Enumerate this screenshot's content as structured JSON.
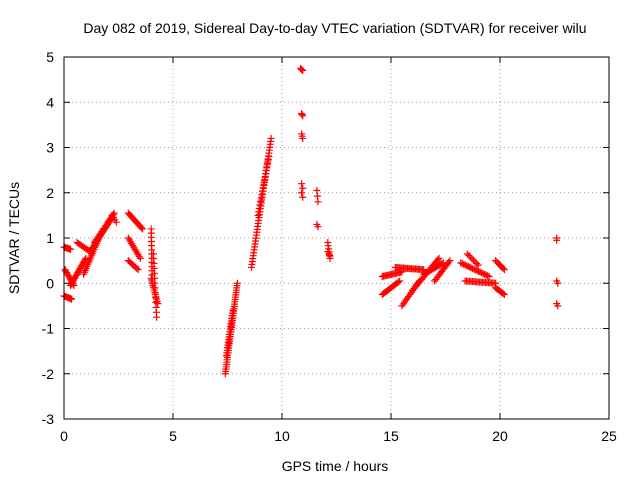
{
  "chart_data": {
    "type": "scatter",
    "title": "Day 082 of 2019, Sidereal Day-to-day VTEC variation (SDTVAR) for receiver wilu",
    "xlabel": "GPS time / hours",
    "ylabel": "SDTVAR / TECUs",
    "xlim": [
      0,
      25
    ],
    "ylim": [
      -3,
      5
    ],
    "xticks": [
      0,
      5,
      10,
      15,
      20,
      25
    ],
    "yticks": [
      -3,
      -2,
      -1,
      0,
      1,
      2,
      3,
      4,
      5
    ],
    "grid": true,
    "marker": "plus",
    "color": "#ff0000",
    "segments": [
      {
        "x0": 0.0,
        "x1": 0.3,
        "y0": 0.8,
        "y1": 0.75,
        "n": 8
      },
      {
        "x0": 0.05,
        "x1": 0.45,
        "y0": 0.3,
        "y1": -0.05,
        "n": 12
      },
      {
        "x0": 0.0,
        "x1": 0.35,
        "y0": -0.28,
        "y1": -0.35,
        "n": 8
      },
      {
        "x0": 0.3,
        "x1": 1.0,
        "y0": -0.05,
        "y1": 0.55,
        "n": 20
      },
      {
        "x0": 0.6,
        "x1": 1.2,
        "y0": 0.9,
        "y1": 0.7,
        "n": 10
      },
      {
        "x0": 0.9,
        "x1": 1.6,
        "y0": 0.2,
        "y1": 1.0,
        "n": 20
      },
      {
        "x0": 1.2,
        "x1": 2.2,
        "y0": 0.7,
        "y1": 1.45,
        "n": 26
      },
      {
        "x0": 1.4,
        "x1": 2.3,
        "y0": 0.9,
        "y1": 1.55,
        "n": 20
      },
      {
        "x0": 2.2,
        "x1": 2.4,
        "y0": 1.5,
        "y1": 1.35,
        "n": 4
      },
      {
        "x0": 2.95,
        "x1": 3.6,
        "y0": 1.55,
        "y1": 1.2,
        "n": 14
      },
      {
        "x0": 2.95,
        "x1": 3.5,
        "y0": 1.0,
        "y1": 0.55,
        "n": 12
      },
      {
        "x0": 2.95,
        "x1": 3.4,
        "y0": 0.5,
        "y1": 0.3,
        "n": 8
      },
      {
        "x0": 4.0,
        "x1": 4.05,
        "y0": 1.2,
        "y1": 0.0,
        "n": 14
      },
      {
        "x0": 4.0,
        "x1": 4.3,
        "y0": 0.1,
        "y1": -0.45,
        "n": 12
      },
      {
        "x0": 4.1,
        "x1": 4.25,
        "y0": 0.65,
        "y1": -0.75,
        "n": 14
      },
      {
        "x0": 7.4,
        "x1": 7.95,
        "y0": -2.0,
        "y1": 0.0,
        "n": 40
      },
      {
        "x0": 7.45,
        "x1": 7.75,
        "y0": -1.6,
        "y1": -0.6,
        "n": 18
      },
      {
        "x0": 8.6,
        "x1": 9.5,
        "y0": 0.35,
        "y1": 3.2,
        "n": 45
      },
      {
        "x0": 8.9,
        "x1": 9.4,
        "y0": 1.5,
        "y1": 2.8,
        "n": 18
      },
      {
        "x0": 10.85,
        "x1": 10.95,
        "y0": 4.75,
        "y1": 4.7,
        "n": 3
      },
      {
        "x0": 10.9,
        "x1": 10.95,
        "y0": 3.75,
        "y1": 3.7,
        "n": 3
      },
      {
        "x0": 10.9,
        "x1": 10.95,
        "y0": 3.3,
        "y1": 3.2,
        "n": 3
      },
      {
        "x0": 10.9,
        "x1": 10.95,
        "y0": 2.2,
        "y1": 2.1,
        "n": 2
      },
      {
        "x0": 10.9,
        "x1": 10.95,
        "y0": 2.0,
        "y1": 1.9,
        "n": 2
      },
      {
        "x0": 11.6,
        "x1": 11.65,
        "y0": 2.05,
        "y1": 1.8,
        "n": 3
      },
      {
        "x0": 11.6,
        "x1": 11.65,
        "y0": 1.3,
        "y1": 1.25,
        "n": 2
      },
      {
        "x0": 12.1,
        "x1": 12.2,
        "y0": 0.9,
        "y1": 0.55,
        "n": 6
      },
      {
        "x0": 12.1,
        "x1": 12.2,
        "y0": 0.7,
        "y1": 0.6,
        "n": 3
      },
      {
        "x0": 14.6,
        "x1": 15.5,
        "y0": 0.15,
        "y1": 0.25,
        "n": 16
      },
      {
        "x0": 14.6,
        "x1": 15.4,
        "y0": -0.25,
        "y1": 0.05,
        "n": 14
      },
      {
        "x0": 15.2,
        "x1": 16.5,
        "y0": 0.35,
        "y1": 0.3,
        "n": 22
      },
      {
        "x0": 15.5,
        "x1": 16.3,
        "y0": -0.5,
        "y1": 0.05,
        "n": 14
      },
      {
        "x0": 16.0,
        "x1": 17.2,
        "y0": -0.15,
        "y1": 0.55,
        "n": 22
      },
      {
        "x0": 16.5,
        "x1": 17.4,
        "y0": 0.2,
        "y1": 0.45,
        "n": 16
      },
      {
        "x0": 17.0,
        "x1": 17.7,
        "y0": 0.05,
        "y1": 0.5,
        "n": 14
      },
      {
        "x0": 18.2,
        "x1": 19.5,
        "y0": 0.45,
        "y1": 0.15,
        "n": 20
      },
      {
        "x0": 18.4,
        "x1": 19.8,
        "y0": 0.05,
        "y1": 0.0,
        "n": 22
      },
      {
        "x0": 18.5,
        "x1": 19.0,
        "y0": 0.65,
        "y1": 0.4,
        "n": 8
      },
      {
        "x0": 19.8,
        "x1": 20.2,
        "y0": 0.5,
        "y1": 0.3,
        "n": 8
      },
      {
        "x0": 19.8,
        "x1": 20.2,
        "y0": -0.1,
        "y1": -0.25,
        "n": 8
      },
      {
        "x0": 22.6,
        "x1": 22.6,
        "y0": 1.0,
        "y1": 0.95,
        "n": 2
      },
      {
        "x0": 22.6,
        "x1": 22.65,
        "y0": 0.05,
        "y1": 0.0,
        "n": 2
      },
      {
        "x0": 22.6,
        "x1": 22.65,
        "y0": -0.45,
        "y1": -0.5,
        "n": 2
      }
    ]
  }
}
